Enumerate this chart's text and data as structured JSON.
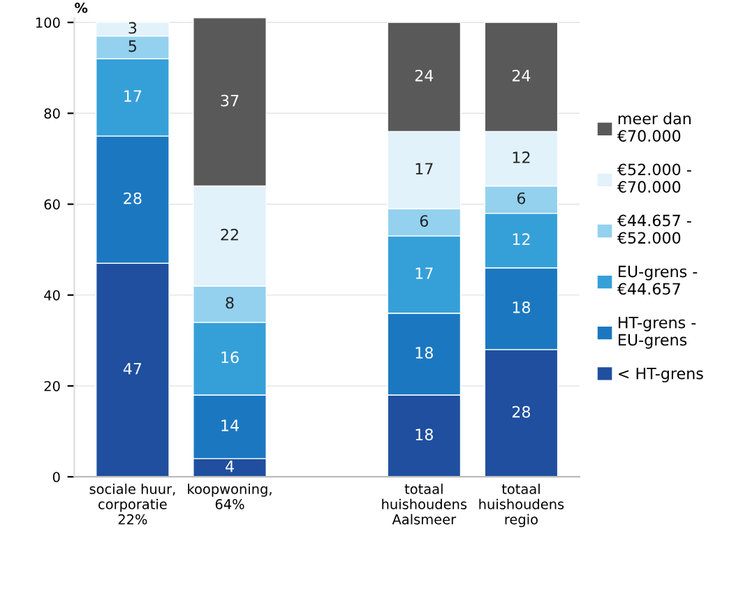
{
  "chart_data": {
    "type": "bar",
    "stacked": true,
    "ylabel": "%",
    "categories": [
      "sociale huur,\ncorporatie\n22%",
      "koopwoning,\n64%",
      null,
      "totaal\nhuishoudens\nAalsmeer",
      "totaal\nhuishoudens\nregio"
    ],
    "series": [
      {
        "name": "< HT-grens",
        "color": "#1f4f9e",
        "values": [
          47,
          4,
          null,
          18,
          28
        ]
      },
      {
        "name": "HT-grens -\nEU-grens",
        "color": "#1b78c0",
        "values": [
          28,
          14,
          null,
          18,
          18
        ]
      },
      {
        "name": "EU-grens -\n€44.657",
        "color": "#35a0d8",
        "values": [
          17,
          16,
          null,
          17,
          12
        ]
      },
      {
        "name": "€44.657 -\n€52.000",
        "color": "#93d1ef",
        "values": [
          5,
          8,
          null,
          6,
          6
        ]
      },
      {
        "name": "€52.000 -\n€70.000",
        "color": "#e1f2fb",
        "values": [
          3,
          22,
          null,
          17,
          12
        ]
      },
      {
        "name": "meer dan\n€70.000",
        "color": "#595959",
        "values": [
          null,
          37,
          null,
          24,
          24
        ]
      }
    ],
    "ylim": [
      0,
      101
    ],
    "yticks": [
      0,
      20,
      40,
      60,
      80,
      100
    ],
    "grid": "y",
    "legend": "right",
    "data_labels": true
  }
}
